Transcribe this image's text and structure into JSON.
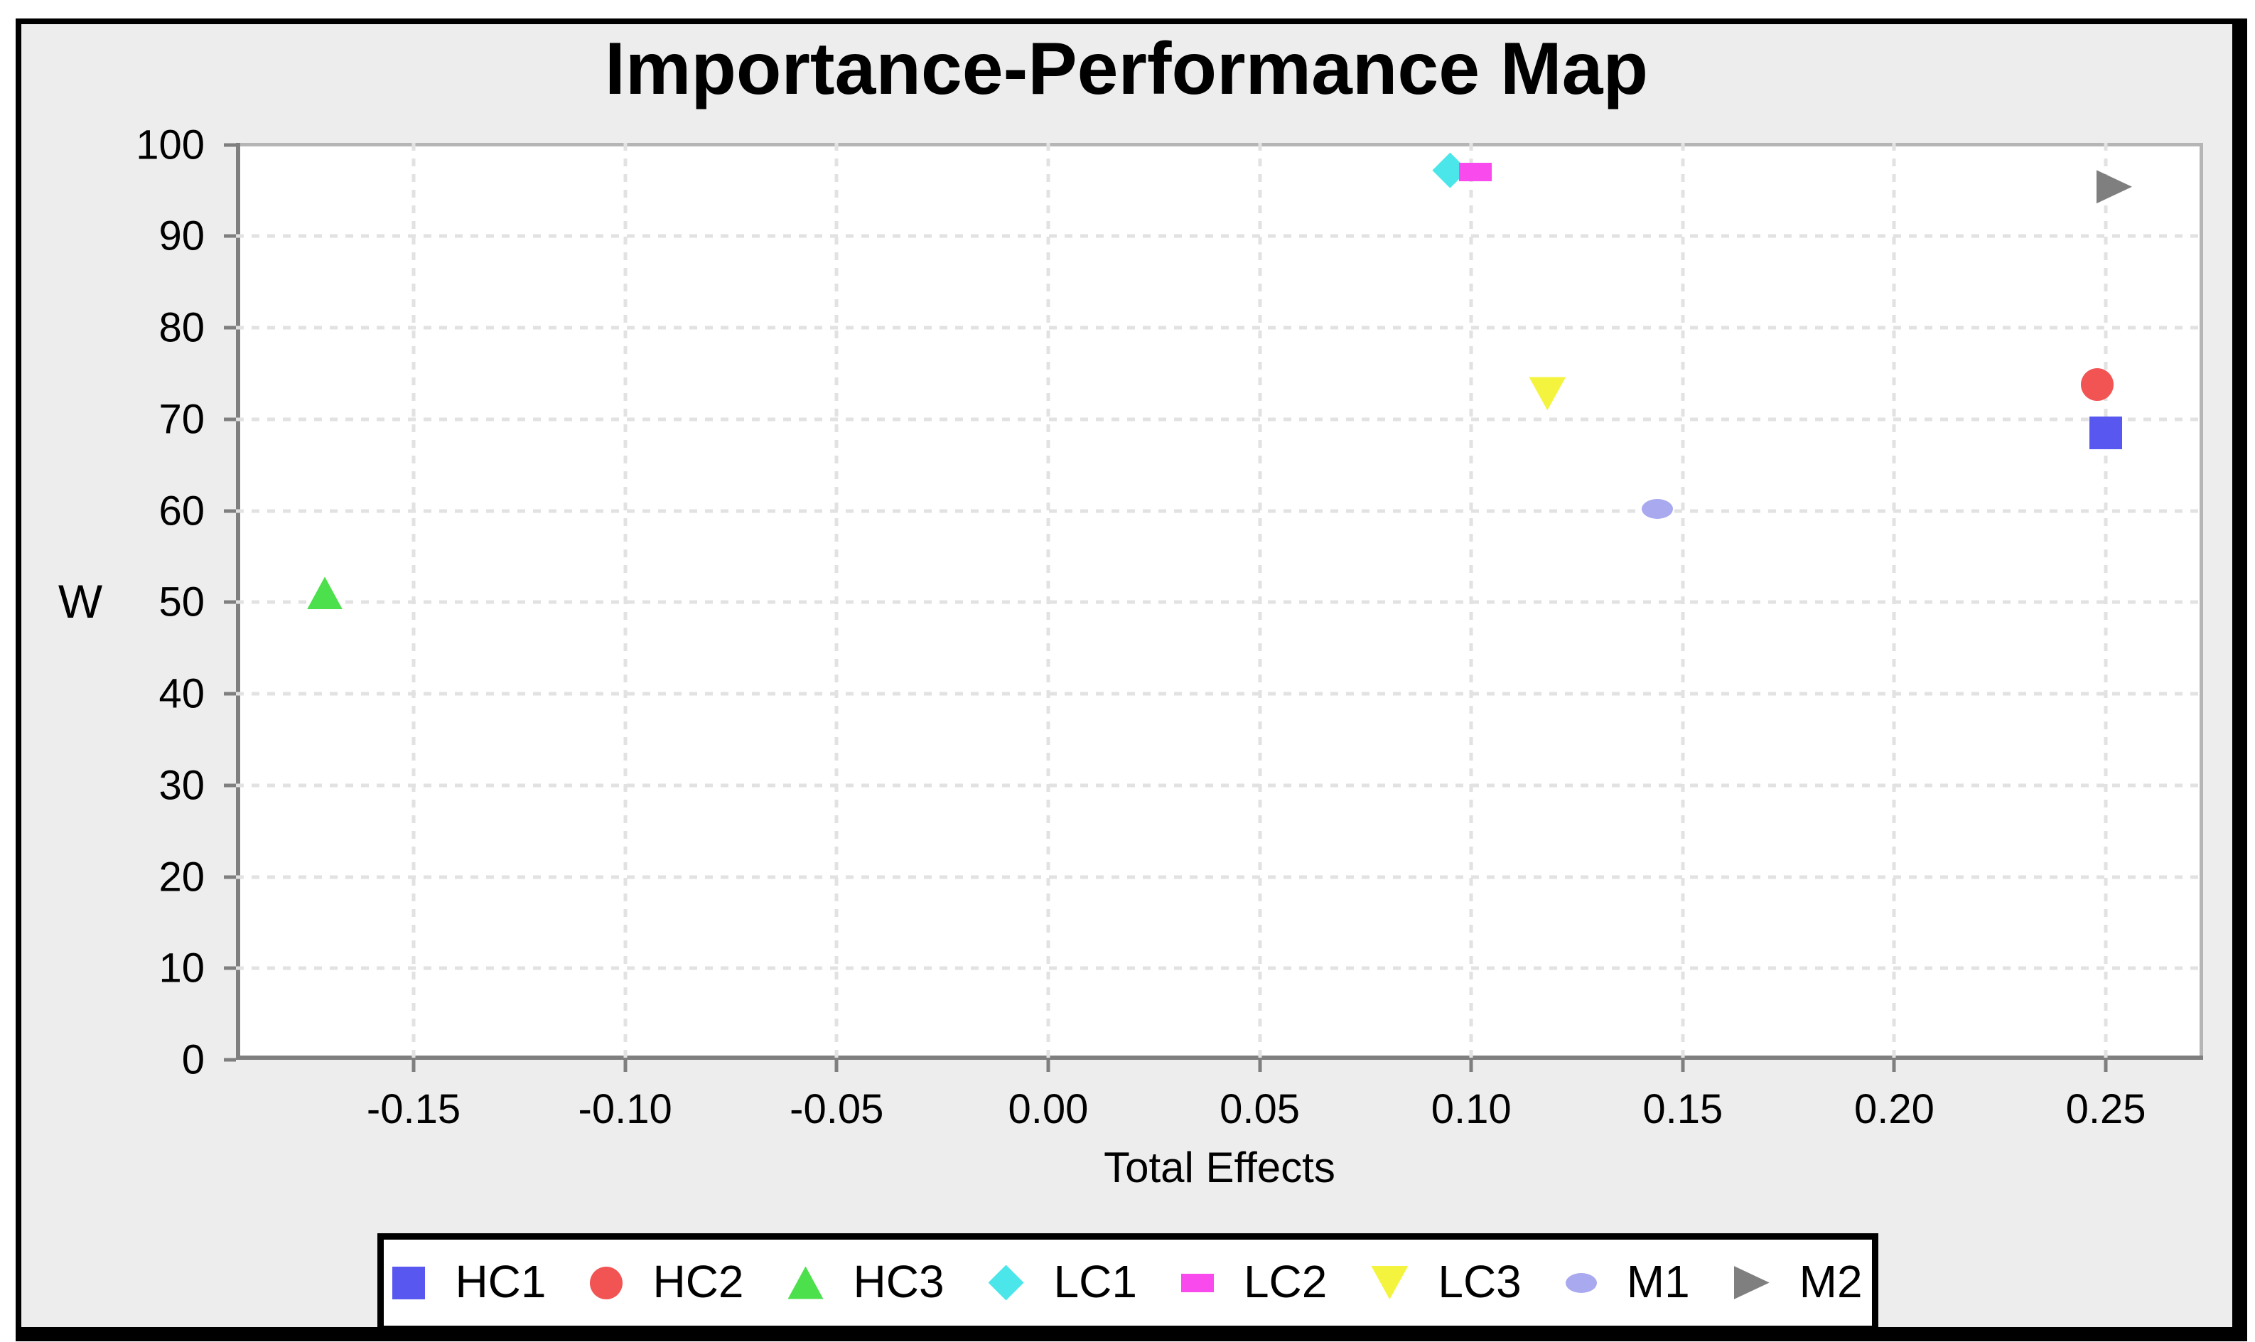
{
  "chart_data": {
    "type": "scatter",
    "title": "Importance-Performance Map",
    "xlabel": "Total Effects",
    "ylabel": "W",
    "xlim": [
      -0.192,
      0.273
    ],
    "ylim": [
      0,
      100.2
    ],
    "grid": true,
    "legend_position": "bottom",
    "x_ticks": {
      "values": [
        -0.15,
        -0.1,
        -0.05,
        0.0,
        0.05,
        0.1,
        0.15,
        0.2,
        0.25
      ],
      "labels": [
        "-0.15",
        "-0.10",
        "-0.05",
        "0.00",
        "0.05",
        "0.10",
        "0.15",
        "0.20",
        "0.25"
      ]
    },
    "y_ticks": {
      "values": [
        0,
        10,
        20,
        30,
        40,
        50,
        60,
        70,
        80,
        90,
        100
      ],
      "labels": [
        "0",
        "10",
        "20",
        "30",
        "40",
        "50",
        "60",
        "70",
        "80",
        "90",
        "100"
      ]
    },
    "series": [
      {
        "name": "HC1",
        "marker": "square",
        "color": "#5857f0",
        "x": 0.25,
        "y": 68.5
      },
      {
        "name": "HC2",
        "marker": "circle",
        "color": "#f25353",
        "x": 0.248,
        "y": 73.8
      },
      {
        "name": "HC3",
        "marker": "triangle-up",
        "color": "#4ce04c",
        "x": -0.171,
        "y": 51.0
      },
      {
        "name": "LC1",
        "marker": "diamond",
        "color": "#4ae6ea",
        "x": 0.095,
        "y": 97.2
      },
      {
        "name": "LC2",
        "marker": "rect",
        "color": "#f94aee",
        "x": 0.101,
        "y": 97.0
      },
      {
        "name": "LC3",
        "marker": "triangle-down",
        "color": "#f4f43e",
        "x": 0.118,
        "y": 72.8
      },
      {
        "name": "M1",
        "marker": "ellipse",
        "color": "#a9a9f0",
        "x": 0.144,
        "y": 60.2
      },
      {
        "name": "M2",
        "marker": "triangle-right",
        "color": "#7f7f7f",
        "x": 0.252,
        "y": 95.4
      }
    ],
    "style": {
      "plot_background": "#ffffff",
      "outer_background": "#ededed",
      "axis_color": "#7f7f7f",
      "border_color": "#b5b5b5",
      "gridline_color": "#e2e2e2",
      "frame_color": "#000000"
    }
  }
}
